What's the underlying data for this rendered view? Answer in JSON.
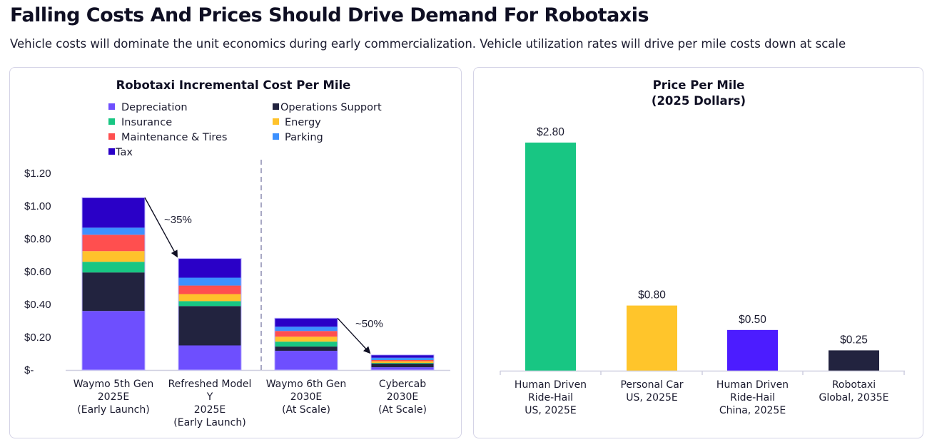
{
  "header": {
    "title": "Falling Costs And Prices Should Drive Demand For Robotaxis",
    "subtitle": "Vehicle costs will dominate the unit economics during early commercialization. Vehicle utilization rates will drive per mile costs down at scale"
  },
  "chart_data": [
    {
      "type": "bar",
      "stacked": true,
      "title": "Robotaxi Incremental Cost Per Mile",
      "xlabel": "",
      "ylabel": "",
      "ylim": [
        0,
        1.2
      ],
      "yticks": [
        0,
        0.2,
        0.4,
        0.6,
        0.8,
        1.0,
        1.2
      ],
      "ytick_labels": [
        "$-",
        "$0.20",
        "$0.40",
        "$0.60",
        "$0.80",
        "$1.00",
        "$1.20"
      ],
      "grid": false,
      "legend_position": "top",
      "categories": [
        [
          "Waymo 5th Gen",
          "2025E",
          "(Early Launch)"
        ],
        [
          "Refreshed Model",
          "Y",
          "2025E",
          "(Early Launch)"
        ],
        [
          "Waymo 6th Gen",
          "2030E",
          "(At Scale)"
        ],
        [
          "Cybercab",
          "2030E",
          "(At Scale)"
        ]
      ],
      "series": [
        {
          "name": "Depreciation",
          "color": "#6e4ffe",
          "values": [
            0.36,
            0.15,
            0.117,
            0.017
          ]
        },
        {
          "name": "Operations Support",
          "color": "#22233f",
          "values": [
            0.235,
            0.24,
            0.026,
            0.022
          ]
        },
        {
          "name": "Insurance",
          "color": "#18c683",
          "values": [
            0.065,
            0.03,
            0.03,
            0.004
          ]
        },
        {
          "name": "Energy",
          "color": "#ffc22b",
          "values": [
            0.065,
            0.043,
            0.03,
            0.01
          ]
        },
        {
          "name": "Maintenance & Tires",
          "color": "#ff4f4f",
          "values": [
            0.1,
            0.052,
            0.035,
            0.008
          ]
        },
        {
          "name": "Parking",
          "color": "#3d91ff",
          "values": [
            0.043,
            0.048,
            0.026,
            0.014
          ]
        },
        {
          "name": "Tax",
          "color": "#2a00c7",
          "values": [
            0.183,
            0.117,
            0.052,
            0.017
          ]
        }
      ],
      "legend_order": [
        "Depreciation",
        "Operations Support",
        "Insurance",
        "Energy",
        "Maintenance & Tires",
        "Parking",
        "Tax"
      ],
      "annotations": [
        {
          "text": "~35%",
          "from_category": 0,
          "to_category": 1
        },
        {
          "text": "~50%",
          "from_category": 2,
          "to_category": 3
        }
      ],
      "divider_after_category": 1
    },
    {
      "type": "bar",
      "title": "Price Per Mile",
      "subtitle": "(2025 Dollars)",
      "xlabel": "",
      "ylabel": "",
      "ylim": [
        0,
        2.8
      ],
      "grid": false,
      "categories": [
        [
          "Human Driven",
          "Ride-Hail",
          "US, 2025E"
        ],
        [
          "Personal Car",
          "US, 2025E"
        ],
        [
          "Human Driven",
          "Ride-Hail",
          "China, 2025E"
        ],
        [
          "Robotaxi",
          "Global, 2035E"
        ]
      ],
      "values": [
        2.8,
        0.8,
        0.5,
        0.25
      ],
      "data_labels": [
        "$2.80",
        "$0.80",
        "$0.50",
        "$0.25"
      ],
      "colors": [
        "#18c683",
        "#ffc52b",
        "#4c1cff",
        "#22233f"
      ]
    }
  ]
}
